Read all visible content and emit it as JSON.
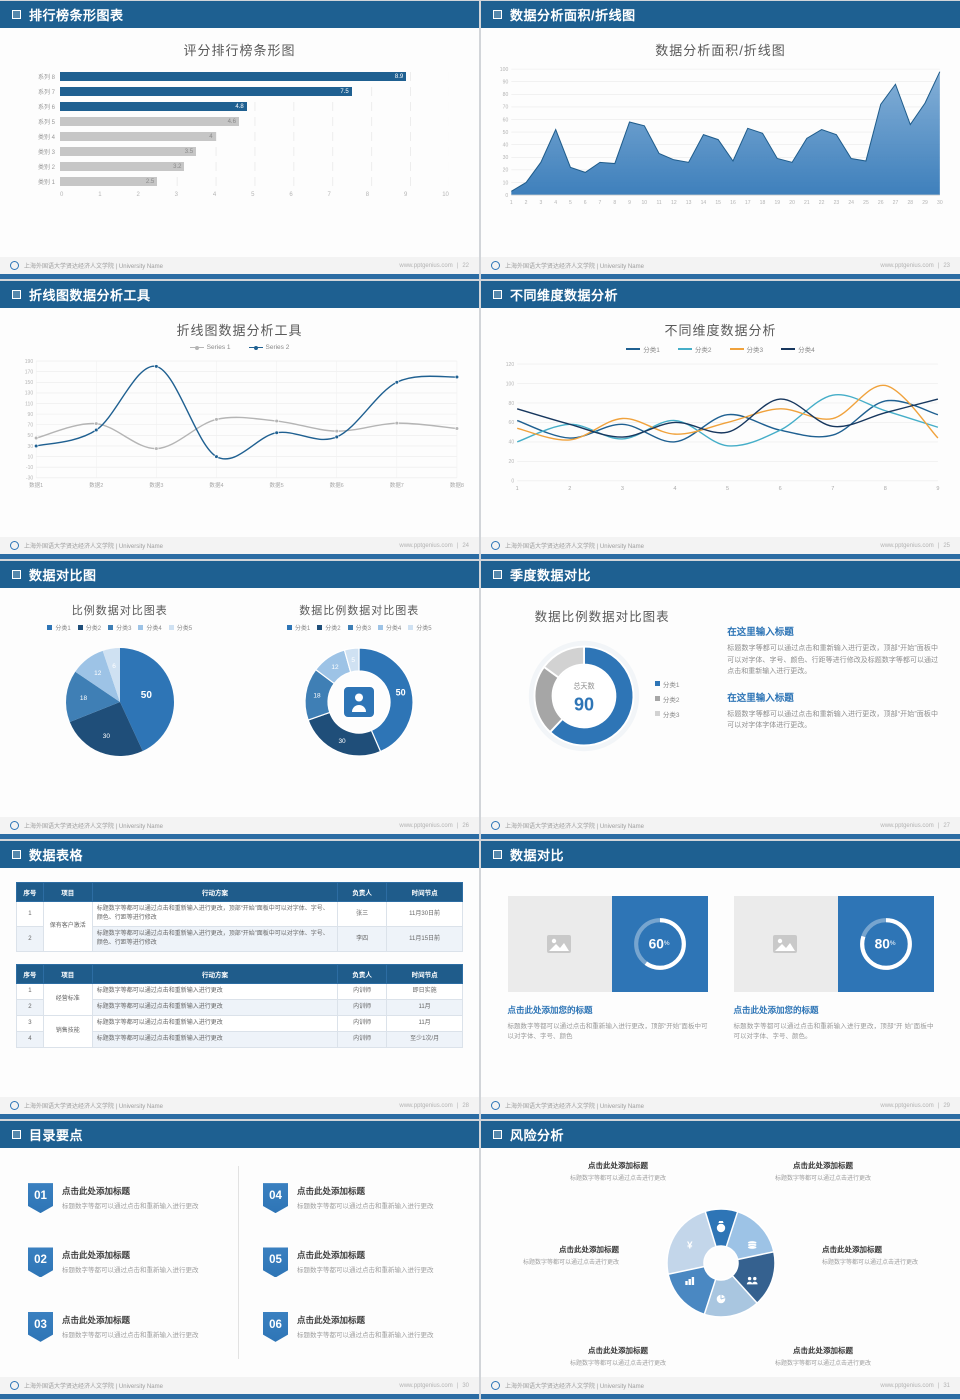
{
  "theme": {
    "header_blue": "#1e6091",
    "accent_blue": "#2e75b6",
    "strip_blue": "#2b6ca3"
  },
  "footer": {
    "org": "上海外国语大学贤达经济人文学院 | University Name",
    "site": "www.pptgenius.com"
  },
  "slides": {
    "s1": {
      "header": "排行榜条形图表",
      "page": "22",
      "chart_data": {
        "type": "bar",
        "orientation": "horizontal",
        "title": "评分排行榜条形图",
        "categories": [
          "系列 8",
          "系列 7",
          "系列 6",
          "系列 5",
          "类别 4",
          "类别 3",
          "类别 2",
          "类别 1"
        ],
        "values": [
          8.9,
          7.5,
          4.8,
          4.6,
          4,
          3.5,
          3.2,
          2.5
        ],
        "highlight_count": 3,
        "bar_color": "#1f6091",
        "muted_color": "#c6c6c6",
        "xlim": [
          0,
          10
        ],
        "xticks": [
          0,
          1,
          2,
          3,
          4,
          5,
          6,
          7,
          8,
          9,
          10
        ]
      }
    },
    "s2": {
      "header": "数据分析面积/折线图",
      "page": "23",
      "chart_data": {
        "type": "area",
        "title": "数据分析面积/折线图",
        "x": [
          1,
          2,
          3,
          4,
          5,
          6,
          7,
          8,
          9,
          10,
          11,
          12,
          13,
          14,
          15,
          16,
          17,
          18,
          19,
          20,
          21,
          22,
          23,
          24,
          25,
          26,
          27,
          28,
          29,
          30
        ],
        "values": [
          3,
          10,
          26,
          52,
          22,
          18,
          26,
          25,
          58,
          55,
          33,
          28,
          26,
          48,
          44,
          27,
          53,
          49,
          29,
          26,
          45,
          52,
          48,
          29,
          27,
          72,
          88,
          56,
          73,
          98
        ],
        "ylim": [
          0,
          100
        ],
        "yticks": [
          0,
          10,
          20,
          30,
          40,
          50,
          60,
          70,
          80,
          90,
          100
        ],
        "line_color": "#1f5c8b",
        "fill_top": "#7aa9d4",
        "fill_bottom": "#2e75b6"
      }
    },
    "s3": {
      "header": "折线图数据分析工具",
      "page": "24",
      "chart_data": {
        "type": "line",
        "title": "折线图数据分析工具",
        "categories": [
          "数据1",
          "数据2",
          "数据3",
          "数据4",
          "数据5",
          "数据6",
          "数据7",
          "数据8"
        ],
        "series": [
          {
            "name": "Series 1",
            "color": "#b5b5b5",
            "values": [
              45,
              72,
              25,
              80,
              77,
              58,
              73,
              63
            ]
          },
          {
            "name": "Series 2",
            "color": "#1f6091",
            "values": [
              30,
              60,
              180,
              10,
              55,
              47,
              150,
              160
            ]
          }
        ],
        "ylim": [
          -30,
          190
        ],
        "yticks": [
          -30,
          -10,
          10,
          30,
          50,
          70,
          90,
          110,
          130,
          150,
          170,
          190
        ],
        "markers": true,
        "vgrid": true,
        "legend_position": "top"
      }
    },
    "s4": {
      "header": "不同维度数据分析",
      "page": "25",
      "chart_data": {
        "type": "line",
        "title": "不同维度数据分析",
        "x": [
          1,
          2,
          3,
          4,
          5,
          6,
          7,
          8,
          9
        ],
        "series": [
          {
            "name": "分类1",
            "color": "#1f6091",
            "values": [
              62,
              44,
              58,
              40,
              68,
              52,
              47,
              82,
              68
            ]
          },
          {
            "name": "分类2",
            "color": "#45aec8",
            "values": [
              40,
              58,
              43,
              62,
              36,
              52,
              88,
              72,
              55
            ]
          },
          {
            "name": "分类3",
            "color": "#f0a23c",
            "values": [
              54,
              42,
              64,
              48,
              60,
              74,
              64,
              98,
              44
            ]
          },
          {
            "name": "分类4",
            "color": "#17375e",
            "values": [
              74,
              58,
              45,
              60,
              50,
              84,
              56,
              70,
              84
            ]
          }
        ],
        "ylim": [
          0,
          120
        ],
        "yticks": [
          0,
          20,
          40,
          60,
          80,
          100,
          120
        ],
        "markers": false,
        "vgrid": false,
        "legend_position": "top"
      }
    },
    "s5": {
      "header": "数据对比图",
      "page": "26",
      "left": {
        "chart_data": {
          "type": "pie",
          "title": "比例数据对比图表",
          "labels": [
            "分类1",
            "分类2",
            "分类3",
            "分类4",
            "分类5"
          ],
          "values": [
            50,
            30,
            18,
            12,
            6
          ],
          "colors": [
            "#2e75b6",
            "#1f4e79",
            "#3f7fb5",
            "#9dc3e6",
            "#cfe1f2"
          ]
        }
      },
      "right": {
        "chart_data": {
          "type": "donut",
          "title": "数据比例数据对比图表",
          "labels": [
            "分类1",
            "分类2",
            "分类3",
            "分类4",
            "分类5"
          ],
          "values": [
            50,
            30,
            18,
            12,
            5
          ],
          "colors": [
            "#2e75b6",
            "#1f4e79",
            "#3f7fb5",
            "#9dc3e6",
            "#cfe1f2"
          ],
          "center_icon": "person-icon",
          "center_color": "#2e75b6"
        }
      }
    },
    "s6": {
      "header": "季度数据对比",
      "page": "27",
      "chart_title": "数据比例数据对比图表",
      "donut": {
        "type": "donut",
        "labels": [
          "分类1",
          "分类2",
          "分类3"
        ],
        "values": [
          62,
          23,
          15
        ],
        "colors": [
          "#2e75b6",
          "#a6a6a6",
          "#d2d2d2"
        ],
        "center_label": "总天数",
        "center_value": "90"
      },
      "blocks": [
        {
          "heading": "在这里输入标题",
          "body": "标题数字等都可以通过点击和重新输入进行更改，顶部“开始”面板中可以对字体、字号、颜色、行距等进行修改及标题数字等都可以通过点击和重新输入进行更改。"
        },
        {
          "heading": "在这里输入标题",
          "body": "标题数字等都可以通过点击和重新输入进行更改，顶部“开始”面板中可以对字体字体进行更改。"
        }
      ]
    },
    "s7": {
      "header": "数据表格",
      "page": "28",
      "table_headers": [
        "序号",
        "项目",
        "行动方案",
        "负责人",
        "时间节点"
      ],
      "table1": {
        "project": "保有客户激活",
        "rows": [
          {
            "no": "1",
            "plan": "标题数字等都可以通过点击和重新输入进行更改，顶部“开始”面板中可以对字体、字号、颜色、行距等进行修改",
            "owner": "张三",
            "time": "11月30日前"
          },
          {
            "no": "2",
            "plan": "标题数字等都可以通过点击和重新输入进行更改，顶部“开始”面板中可以对字体、字号、颜色、行距等进行修改",
            "owner": "李四",
            "time": "11月15日前"
          }
        ]
      },
      "table2": {
        "groups": [
          {
            "project": "经营标准",
            "rows": [
              {
                "no": "1",
                "plan": "标题数字等都可以通过点击和重新输入进行更改",
                "owner": "内训师",
                "time": "即日实施"
              },
              {
                "no": "2",
                "plan": "标题数字等都可以通过点击和重新输入进行更改",
                "owner": "内训师",
                "time": "11月"
              }
            ]
          },
          {
            "project": "销售技能",
            "rows": [
              {
                "no": "3",
                "plan": "标题数字等都可以通过点击和重新输入进行更改",
                "owner": "内训师",
                "time": "11月"
              },
              {
                "no": "4",
                "plan": "标题数字等都可以通过点击和重新输入进行更改",
                "owner": "内训师",
                "time": "至少1次/月"
              }
            ]
          }
        ]
      }
    },
    "s8": {
      "header": "数据对比",
      "page": "29",
      "cards": [
        {
          "percent": 60,
          "title": "点击此处添加您的标题",
          "body": "标题数字等都可以通过点击和重新输入进行更改，顶部“开始”面板中可以对字体、字号、颜色"
        },
        {
          "percent": 80,
          "title": "点击此处添加您的标题",
          "body": "标题数字等都可以通过点击和重新输入进行更改，顶部“开 始”面板中可以对字体、字号、颜色。"
        }
      ]
    },
    "s9": {
      "header": "目录要点",
      "page": "30",
      "items": [
        {
          "num": "01",
          "title": "点击此处添加标题",
          "body": "标题数字等都可以通过点击和重新输入进行更改"
        },
        {
          "num": "02",
          "title": "点击此处添加标题",
          "body": "标题数字等都可以通过点击和重新输入进行更改"
        },
        {
          "num": "03",
          "title": "点击此处添加标题",
          "body": "标题数字等都可以通过点击和重新输入进行更改"
        },
        {
          "num": "04",
          "title": "点击此处添加标题",
          "body": "标题数字等都可以通过点击和重新输入进行更改"
        },
        {
          "num": "05",
          "title": "点击此处添加标题",
          "body": "标题数字等都可以通过点击和重新输入进行更改"
        },
        {
          "num": "06",
          "title": "点击此处添加标题",
          "body": "标题数字等都可以通过点击和重新输入进行更改"
        }
      ]
    },
    "s10": {
      "header": "风险分析",
      "page": "31",
      "blade_colors": [
        "#2e75b6",
        "#9dc3e6",
        "#35618f",
        "#a9c6e0",
        "#4a88c2",
        "#c3d6ea"
      ],
      "icons": [
        "money-bag-icon",
        "coins-icon",
        "people-icon",
        "pie-chart-icon",
        "bar-chart-icon",
        "yen-icon"
      ],
      "labels": [
        {
          "pos": "top-left",
          "title": "点击此处添加标题",
          "body": "标题数字等都可以通过点击进行更改"
        },
        {
          "pos": "top-right",
          "title": "点击此处添加标题",
          "body": "标题数字等都可以通过点击进行更改"
        },
        {
          "pos": "mid-left",
          "title": "点击此处添加标题",
          "body": "标题数字等都可以通过点击进行更改"
        },
        {
          "pos": "mid-right",
          "title": "点击此处添加标题",
          "body": "标题数字等都可以通过点击进行更改"
        },
        {
          "pos": "bottom-left",
          "title": "点击此处添加标题",
          "body": "标题数字等都可以通过点击进行更改"
        },
        {
          "pos": "bottom-right",
          "title": "点击此处添加标题",
          "body": "标题数字等都可以通过点击进行更改"
        }
      ]
    }
  }
}
